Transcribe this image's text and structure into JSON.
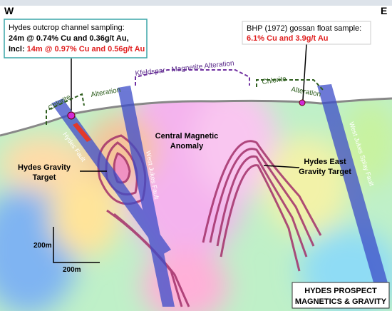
{
  "header": {
    "west": "W",
    "east": "E"
  },
  "callouts": [
    {
      "title": "Hydes outcrop channel sampling:",
      "line1": "24m @ 0.74% Cu and 0.36g/t Au,",
      "prefix": "Incl: ",
      "highlight": "14m @ 0.97% Cu and 0.56g/t Au"
    },
    {
      "title": "BHP (1972) gossan float sample:",
      "highlight": "6.1% Cu and 3.9g/t Au"
    }
  ],
  "zones": {
    "kfeldspar": "Kfeldspar - Magnetite  Alteration",
    "chlorite_left": [
      "Chlorite",
      "Alteration"
    ],
    "chlorite_right": [
      "Chlorite",
      "Alteration"
    ]
  },
  "faults": {
    "hydes": "Hydes Fault",
    "west_jukes": "West Jukes Fault",
    "splay": "West Jukes Splay Fault"
  },
  "targets": {
    "central": [
      "Central Magnetic",
      "Anomaly"
    ],
    "hydes": [
      "Hydes Gravity",
      "Target"
    ],
    "hydes_east": [
      "Hydes East",
      "Gravity Target"
    ]
  },
  "scale": {
    "vertical": "200m",
    "horizontal": "200m"
  },
  "footer": {
    "line1": "HYDES PROSPECT",
    "line2": "MAGNETICS & GRAVITY"
  }
}
